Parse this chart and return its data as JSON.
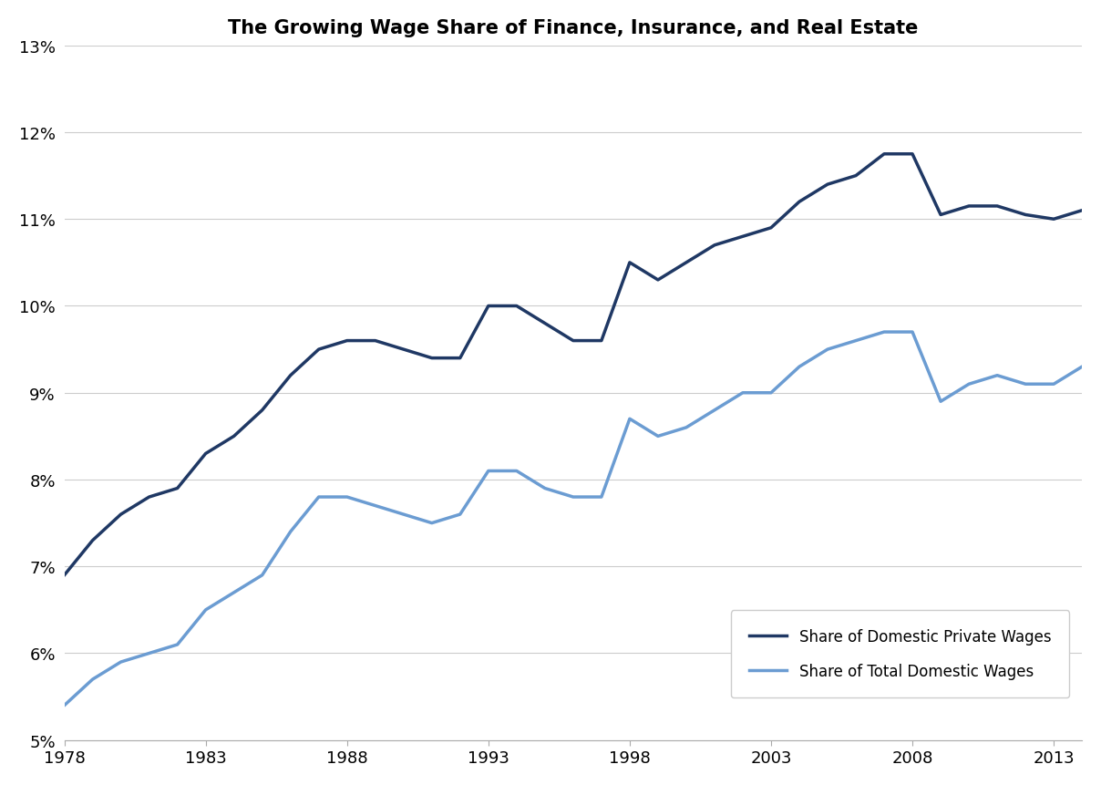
{
  "title": "The Growing Wage Share of Finance, Insurance, and Real Estate",
  "years": [
    1978,
    1979,
    1980,
    1981,
    1982,
    1983,
    1984,
    1985,
    1986,
    1987,
    1988,
    1989,
    1990,
    1991,
    1992,
    1993,
    1994,
    1995,
    1996,
    1997,
    1998,
    1999,
    2000,
    2001,
    2002,
    2003,
    2004,
    2005,
    2006,
    2007,
    2008,
    2009,
    2010,
    2011,
    2012,
    2013,
    2014
  ],
  "private_wages": [
    0.069,
    0.073,
    0.076,
    0.078,
    0.079,
    0.083,
    0.085,
    0.088,
    0.092,
    0.095,
    0.096,
    0.096,
    0.095,
    0.094,
    0.094,
    0.1,
    0.1,
    0.098,
    0.096,
    0.096,
    0.105,
    0.103,
    0.105,
    0.107,
    0.108,
    0.109,
    0.112,
    0.114,
    0.115,
    0.1175,
    0.1175,
    0.1105,
    0.1115,
    0.1115,
    0.1105,
    0.11,
    0.111
  ],
  "total_wages": [
    0.054,
    0.057,
    0.059,
    0.06,
    0.061,
    0.065,
    0.067,
    0.069,
    0.074,
    0.078,
    0.078,
    0.077,
    0.076,
    0.075,
    0.076,
    0.081,
    0.081,
    0.079,
    0.078,
    0.078,
    0.087,
    0.085,
    0.086,
    0.088,
    0.09,
    0.09,
    0.093,
    0.095,
    0.096,
    0.097,
    0.097,
    0.089,
    0.091,
    0.092,
    0.091,
    0.091,
    0.093
  ],
  "private_color": "#1F3864",
  "total_color": "#6B9CD2",
  "ylim_min": 0.05,
  "ylim_max": 0.13,
  "yticks": [
    0.05,
    0.06,
    0.07,
    0.08,
    0.09,
    0.1,
    0.11,
    0.12,
    0.13
  ],
  "xticks": [
    1978,
    1983,
    1988,
    1993,
    1998,
    2003,
    2008,
    2013
  ],
  "legend_private": "Share of Domestic Private Wages",
  "legend_total": "Share of Total Domestic Wages",
  "title_fontsize": 15,
  "tick_fontsize": 13,
  "legend_fontsize": 12,
  "line_width": 2.5,
  "background_color": "#FFFFFF",
  "grid_color": "#CCCCCC"
}
